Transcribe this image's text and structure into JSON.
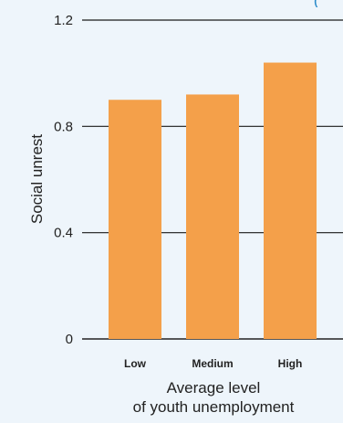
{
  "header_fragment": "(",
  "chart_data": {
    "type": "bar",
    "categories": [
      "Low",
      "Medium",
      "High"
    ],
    "values": [
      0.9,
      0.92,
      1.04
    ],
    "ylabel": "Social unrest",
    "xlabel_lines": [
      "Average level",
      "of youth unemployment"
    ],
    "ylim": [
      0,
      1.2
    ],
    "yticks": [
      0,
      0.4,
      0.8,
      1.2
    ],
    "ytick_labels": [
      "0",
      "0.4",
      "0.8",
      "1.2"
    ],
    "grid": true,
    "bar_color": "#f4a04a"
  }
}
